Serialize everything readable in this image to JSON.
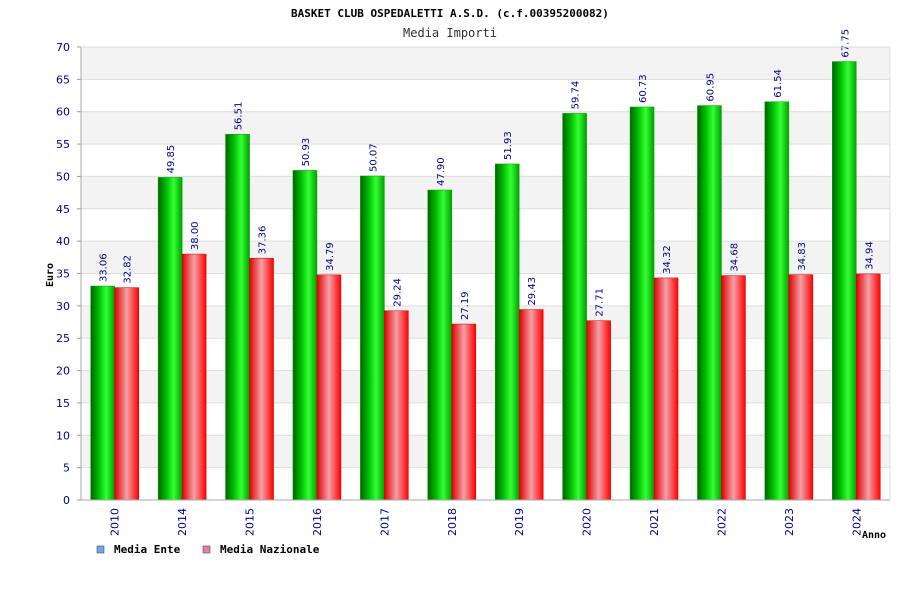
{
  "chart_data": {
    "type": "bar",
    "title": "BASKET CLUB OSPEDALETTI A.S.D. (c.f.00395200082)",
    "subtitle": "Media Importi",
    "ylabel": "Euro",
    "xlabel": "Anno",
    "ylim": [
      0,
      70
    ],
    "yticks": [
      0,
      5,
      10,
      15,
      20,
      25,
      30,
      35,
      40,
      45,
      50,
      55,
      60,
      65,
      70
    ],
    "grid": true,
    "legend_position": "bottom-left",
    "categories": [
      "2010",
      "2014",
      "2015",
      "2016",
      "2017",
      "2018",
      "2019",
      "2020",
      "2021",
      "2022",
      "2023",
      "2024"
    ],
    "series": [
      {
        "name": "Media Ente",
        "color": "#00c000",
        "legend_color": "#6fa8e8",
        "values": [
          33.06,
          49.85,
          56.51,
          50.93,
          50.07,
          47.9,
          51.93,
          59.74,
          60.73,
          60.95,
          61.54,
          67.75
        ],
        "labels": [
          "33.06",
          "49.85",
          "56.51",
          "50.93",
          "50.07",
          "47.90",
          "51.93",
          "59.74",
          "60.73",
          "60.95",
          "61.54",
          "67.75"
        ]
      },
      {
        "name": "Media Nazionale",
        "color": "#ff0000",
        "legend_color": "#e080b0",
        "values": [
          32.82,
          38.0,
          37.36,
          34.79,
          29.24,
          27.19,
          29.43,
          27.71,
          34.32,
          34.68,
          34.83,
          34.94
        ],
        "labels": [
          "32.82",
          "38.00",
          "37.36",
          "34.79",
          "29.24",
          "27.19",
          "29.43",
          "27.71",
          "34.32",
          "34.68",
          "34.83",
          "34.94"
        ]
      }
    ]
  }
}
